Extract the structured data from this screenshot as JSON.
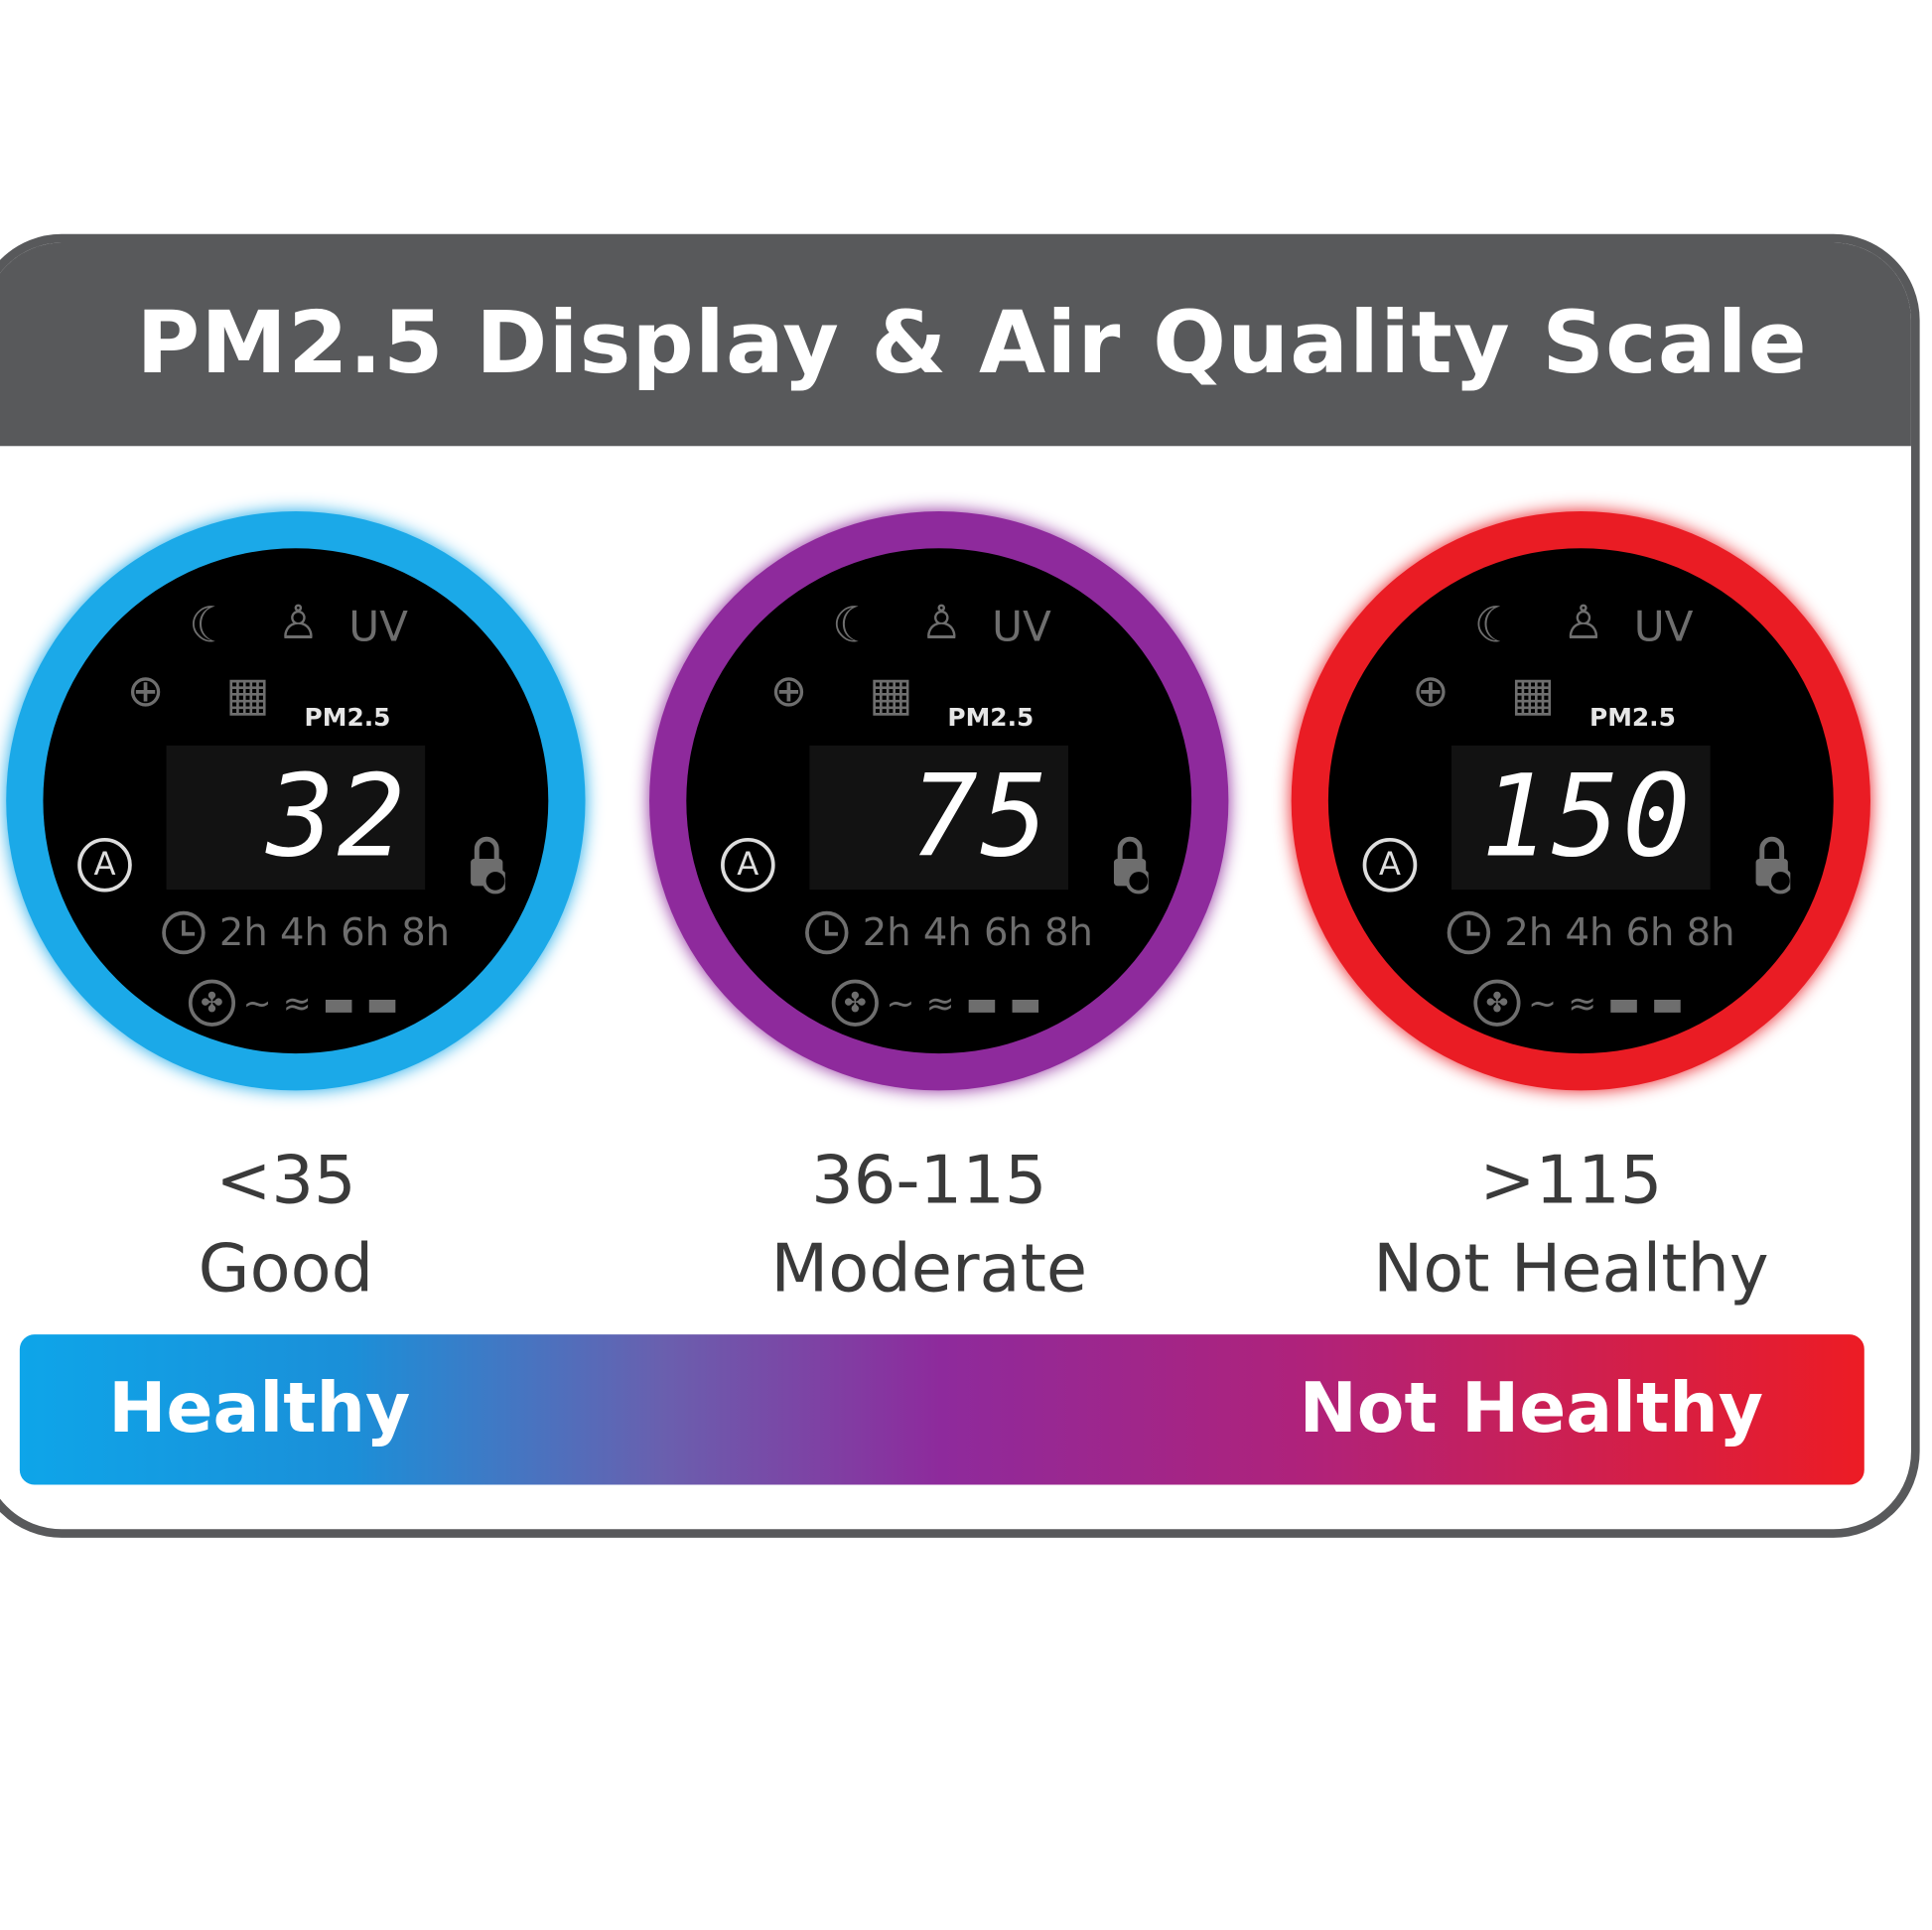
{
  "title": "PM2.5 Display & Air Quality Scale",
  "dials": [
    {
      "value": "32",
      "range": "<35",
      "level": "Good",
      "ring_color": "#1ba9e8"
    },
    {
      "value": "75",
      "range": "36-115",
      "level": "Moderate",
      "ring_color": "#8e2a9c"
    },
    {
      "value": "150",
      "range": ">115",
      "level": "Not Healthy",
      "ring_color": "#ea1c24"
    }
  ],
  "display": {
    "pm_label": "PM2.5",
    "uv_label": "UV",
    "auto_label": "A",
    "timer_options": "2h 4h 6h 8h",
    "fan_speeds": "~ ≈ ▬ ▬",
    "icons": [
      "moon-icon",
      "person-icon",
      "filter-icon",
      "grid-icon",
      "auto-mode-icon",
      "lock-icon",
      "clock-icon",
      "fan-icon"
    ]
  },
  "scale_bar": {
    "left_label": "Healthy",
    "right_label": "Not Healthy",
    "colors": [
      "#0ea5e9",
      "#8e2a9c",
      "#ed1c24"
    ]
  }
}
